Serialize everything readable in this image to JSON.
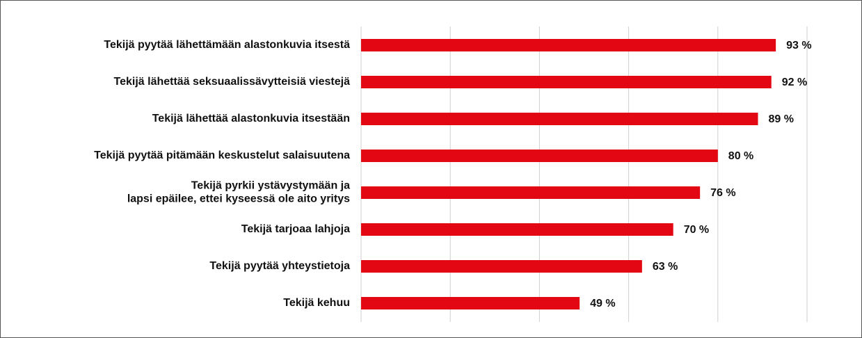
{
  "chart_data": {
    "type": "barh",
    "categories": [
      "Tekijä pyytää lähettämään alastonkuvia itsestä",
      "Tekijä lähettää seksuaalissävytteisiä viestejä",
      "Tekijä lähettää alastonkuvia itsestään",
      "Tekijä pyytää pitämään keskustelut salaisuutena",
      "Tekijä pyrkii ystävystymään ja\nlapsi epäilee, ettei kyseessä ole aito yritys",
      "Tekijä tarjoaa lahjoja",
      "Tekijä pyytää yhteystietoja",
      "Tekijä kehuu"
    ],
    "values": [
      93,
      92,
      89,
      80,
      76,
      70,
      63,
      49
    ],
    "value_labels": [
      "93 %",
      "92 %",
      "89 %",
      "80 %",
      "76 %",
      "70 %",
      "63 %",
      "49 %"
    ],
    "color": "#e30613",
    "xlim": [
      0,
      100
    ],
    "xticks": [
      0,
      20,
      40,
      60,
      80,
      100
    ],
    "grid": true
  }
}
